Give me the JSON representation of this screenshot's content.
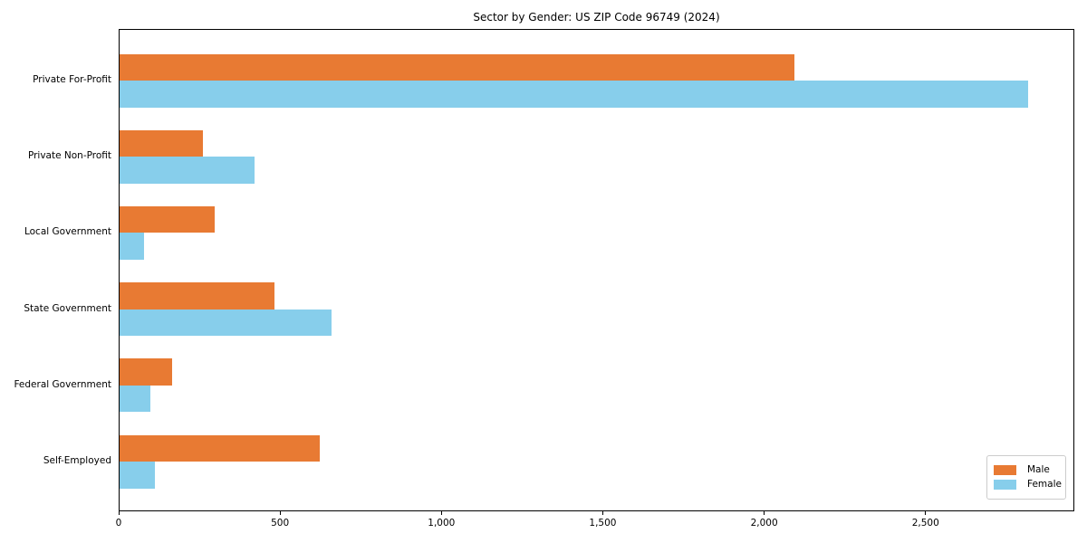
{
  "title": "Sector by Gender: US ZIP Code 96749 (2024)",
  "chart_data": {
    "type": "bar",
    "orientation": "horizontal",
    "title": "Sector by Gender: US ZIP Code 96749 (2024)",
    "categories": [
      "Private For-Profit",
      "Private Non-Profit",
      "Local Government",
      "State Government",
      "Federal Government",
      "Self-Employed"
    ],
    "series": [
      {
        "name": "Male",
        "color": "#E87A33",
        "values": [
          2095,
          259,
          294,
          480,
          164,
          622
        ]
      },
      {
        "name": "Female",
        "color": "#87CEEB",
        "values": [
          2820,
          420,
          76,
          657,
          95,
          111
        ]
      }
    ],
    "xlim": [
      0,
      2961
    ],
    "xticks": [
      0,
      500,
      1000,
      1500,
      2000,
      2500
    ],
    "xtick_labels": [
      "0",
      "500",
      "1,000",
      "1,500",
      "2,000",
      "2,500"
    ],
    "xlabel": "",
    "ylabel": "",
    "grid": false,
    "legend_position": "lower right",
    "plot_border_color": "#000000",
    "background_color": "#ffffff"
  }
}
